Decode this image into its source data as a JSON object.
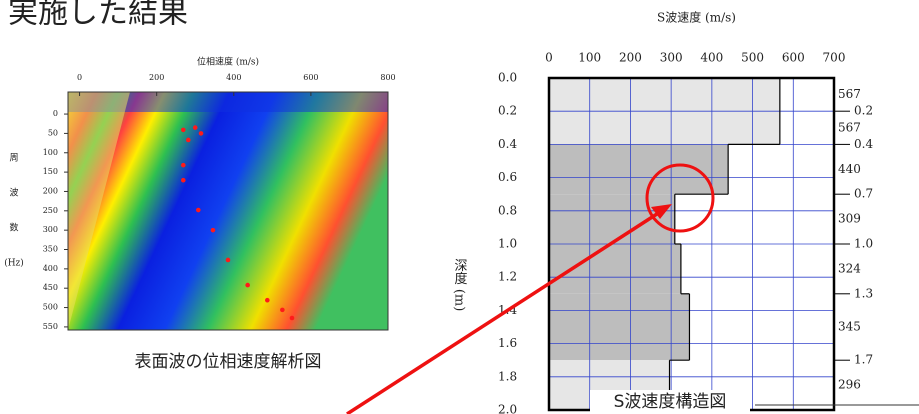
{
  "title": "実施した結果",
  "chart_data": [
    {
      "type": "heatmap",
      "xlabel": "位相速度 (m/s)",
      "ylabel": [
        "周",
        "波",
        "数",
        "(Hz)"
      ],
      "caption": "表面波の位相速度解析図",
      "xlim": [
        -30,
        800
      ],
      "xticks": [
        0,
        200,
        400,
        600,
        800
      ],
      "ylim": [
        -57,
        558
      ],
      "yticks": [
        0,
        50,
        100,
        150,
        200,
        250,
        300,
        350,
        400,
        450,
        500,
        550
      ],
      "series": [
        {
          "color": "#ff1a1a",
          "x": [
            269,
            282,
            300,
            315,
            269,
            269,
            308,
            346,
            385,
            436,
            487,
            526,
            551
          ],
          "values": [
            41,
            67,
            35,
            50,
            132,
            171,
            248,
            300,
            377,
            442,
            481,
            506,
            527
          ]
        }
      ]
    },
    {
      "type": "step",
      "xlabel": "S波速度 (m/s)",
      "ylabel": "深度 (m)",
      "caption": "S波速度構造図",
      "xlim": [
        0,
        700
      ],
      "xticks": [
        0,
        100,
        200,
        300,
        400,
        500,
        600,
        700
      ],
      "ylim": [
        0,
        2
      ],
      "yticks": [
        {
          "value": 0,
          "label": "0.0"
        },
        0.2,
        0.4,
        0.6,
        0.8,
        {
          "value": 1,
          "label": "1.0"
        },
        1.2,
        1.4,
        1.6,
        1.8,
        {
          "value": 2,
          "label": "2.0"
        }
      ],
      "values": [
        567,
        567,
        440,
        309,
        324,
        345,
        296
      ],
      "boundaries": [
        0.2,
        0.4,
        0.7,
        {
          "value": 1,
          "label": "1.0"
        },
        1.3,
        1.7
      ],
      "fills": [
        "#e6e6e6",
        "#e6e6e6",
        "#bdbdbd",
        "#bdbdbd",
        "#bdbdbd",
        "#bdbdbd",
        "#e6e6e6"
      ],
      "grid_color": "#3344cc"
    }
  ]
}
